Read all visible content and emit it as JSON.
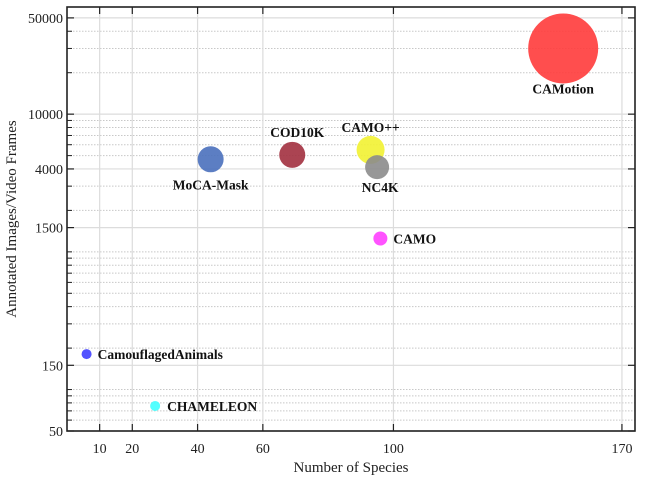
{
  "chart_data": {
    "type": "scatter",
    "xlabel": "Number of Species",
    "ylabel": "Annotated Images/Video Frames",
    "xscale": "linear",
    "yscale": "log",
    "xlim": [
      0,
      174
    ],
    "ylim": [
      50,
      60000
    ],
    "xticks": [
      10,
      20,
      40,
      60,
      100,
      170
    ],
    "yticks": [
      50,
      150,
      1500,
      4000,
      10000,
      50000
    ],
    "grid": true,
    "points": [
      {
        "label": "CAMotion",
        "x": 152,
        "y": 30000,
        "color": "#ff3b3b"
      },
      {
        "label": "MoCA-Mask",
        "x": 44,
        "y": 4700,
        "color": "#4a70bd"
      },
      {
        "label": "COD10K",
        "x": 69,
        "y": 5066,
        "color": "#a2303f"
      },
      {
        "label": "CAMO++",
        "x": 93,
        "y": 5500,
        "color": "#f2f232"
      },
      {
        "label": "NC4K",
        "x": 95,
        "y": 4121,
        "color": "#8c8c8c"
      },
      {
        "label": "CAMO",
        "x": 96,
        "y": 1250,
        "color": "#ff40ff"
      },
      {
        "label": "CamouflagedAnimals",
        "x": 6,
        "y": 181,
        "color": "#4040ff"
      },
      {
        "label": "CHAMELEON",
        "x": 27,
        "y": 76,
        "color": "#40ffff"
      }
    ]
  }
}
